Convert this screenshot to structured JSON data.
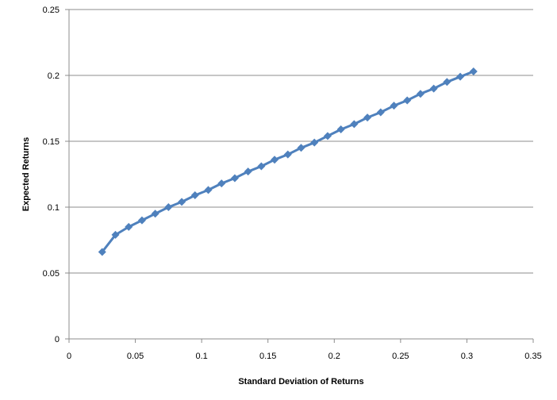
{
  "chart_data": {
    "type": "line",
    "title": "",
    "xlabel": "Standard Deviation of Returns",
    "ylabel": "Expected Returns",
    "xlim": [
      0,
      0.35
    ],
    "ylim": [
      0,
      0.25
    ],
    "x_ticks": [
      0,
      0.05,
      0.1,
      0.15,
      0.2,
      0.25,
      0.3,
      0.35
    ],
    "y_ticks": [
      0,
      0.05,
      0.1,
      0.15,
      0.2,
      0.25
    ],
    "x_tick_labels": [
      "0",
      "0.05",
      "0.1",
      "0.15",
      "0.2",
      "0.25",
      "0.3",
      "0.35"
    ],
    "y_tick_labels": [
      "0",
      "0.05",
      "0.1",
      "0.15",
      "0.2",
      "0.25"
    ],
    "grid": {
      "horizontal": true,
      "vertical": false
    },
    "legend": "none",
    "marker": "diamond",
    "series": [
      {
        "color": "#4f81bd",
        "points": [
          [
            0.025,
            0.066
          ],
          [
            0.035,
            0.079
          ],
          [
            0.045,
            0.085
          ],
          [
            0.055,
            0.09
          ],
          [
            0.065,
            0.095
          ],
          [
            0.075,
            0.1
          ],
          [
            0.085,
            0.104
          ],
          [
            0.095,
            0.109
          ],
          [
            0.105,
            0.113
          ],
          [
            0.115,
            0.118
          ],
          [
            0.125,
            0.122
          ],
          [
            0.135,
            0.127
          ],
          [
            0.145,
            0.131
          ],
          [
            0.155,
            0.136
          ],
          [
            0.165,
            0.14
          ],
          [
            0.175,
            0.145
          ],
          [
            0.185,
            0.149
          ],
          [
            0.195,
            0.154
          ],
          [
            0.205,
            0.159
          ],
          [
            0.215,
            0.163
          ],
          [
            0.225,
            0.168
          ],
          [
            0.235,
            0.172
          ],
          [
            0.245,
            0.177
          ],
          [
            0.255,
            0.181
          ],
          [
            0.265,
            0.186
          ],
          [
            0.275,
            0.19
          ],
          [
            0.285,
            0.195
          ],
          [
            0.295,
            0.199
          ],
          [
            0.305,
            0.203
          ]
        ]
      }
    ]
  }
}
